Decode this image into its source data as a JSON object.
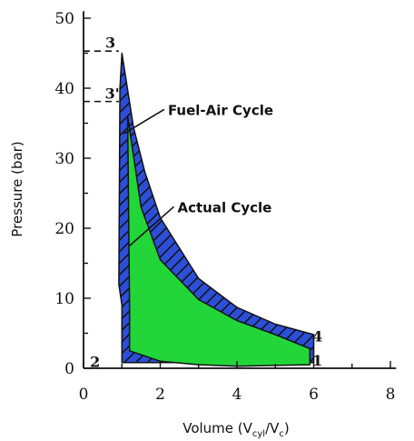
{
  "chart_data": {
    "type": "area",
    "xlabel": "Volume (V",
    "xlabel_sub1": "cyl",
    "xlabel_mid": "/V",
    "xlabel_sub2": "c",
    "xlabel_end": ")",
    "ylabel": "Pressure (bar)",
    "xlim": [
      0,
      8
    ],
    "ylim": [
      0,
      50
    ],
    "x_ticks": [
      "0",
      "2",
      "4",
      "6",
      "8"
    ],
    "y_ticks": [
      "0",
      "10",
      "20",
      "30",
      "40",
      "50"
    ],
    "grid": false,
    "series": [
      {
        "name": "Fuel-Air Cycle",
        "fill": "#2d4fd8",
        "hatch": true,
        "points": [
          [
            1,
            0.8
          ],
          [
            6,
            0.8
          ],
          [
            6,
            4.8
          ],
          [
            5,
            6.3
          ],
          [
            4,
            8.7
          ],
          [
            3,
            12.8
          ],
          [
            2,
            21.5
          ],
          [
            1.6,
            28
          ],
          [
            1.3,
            34.5
          ],
          [
            1,
            45
          ],
          [
            0.95,
            40
          ],
          [
            0.92,
            12
          ],
          [
            1,
            9
          ]
        ]
      },
      {
        "name": "Actual Cycle",
        "fill": "#22d63a",
        "points": [
          [
            1.2,
            2.5
          ],
          [
            2,
            1
          ],
          [
            3,
            0.5
          ],
          [
            4,
            0.3
          ],
          [
            5,
            0.4
          ],
          [
            5.9,
            0.5
          ],
          [
            5.9,
            2.8
          ],
          [
            5,
            4.8
          ],
          [
            4,
            6.8
          ],
          [
            3,
            9.8
          ],
          [
            2,
            15.5
          ],
          [
            1.5,
            23
          ],
          [
            1.15,
            36
          ],
          [
            1.2,
            9
          ]
        ]
      }
    ],
    "points": [
      {
        "label": "3",
        "x": 0.7,
        "y": 45.8
      },
      {
        "label": "3'",
        "x": 0.75,
        "y": 38.5
      },
      {
        "label": "2",
        "x": 0.3,
        "y": 0.2
      },
      {
        "label": "4",
        "x": 6.1,
        "y": 3.8
      },
      {
        "label": "1",
        "x": 6.1,
        "y": 0.4
      }
    ],
    "annotations": [
      {
        "text": "Fuel-Air Cycle",
        "target_x": 1.05,
        "target_y": 33.5,
        "label_x": 2.2,
        "label_y": 36.2
      },
      {
        "text": "Actual Cycle",
        "target_x": 1.2,
        "target_y": 17.5,
        "label_x": 2.45,
        "label_y": 22.3
      }
    ],
    "dashed_levels": [
      45.3,
      38.1
    ]
  }
}
